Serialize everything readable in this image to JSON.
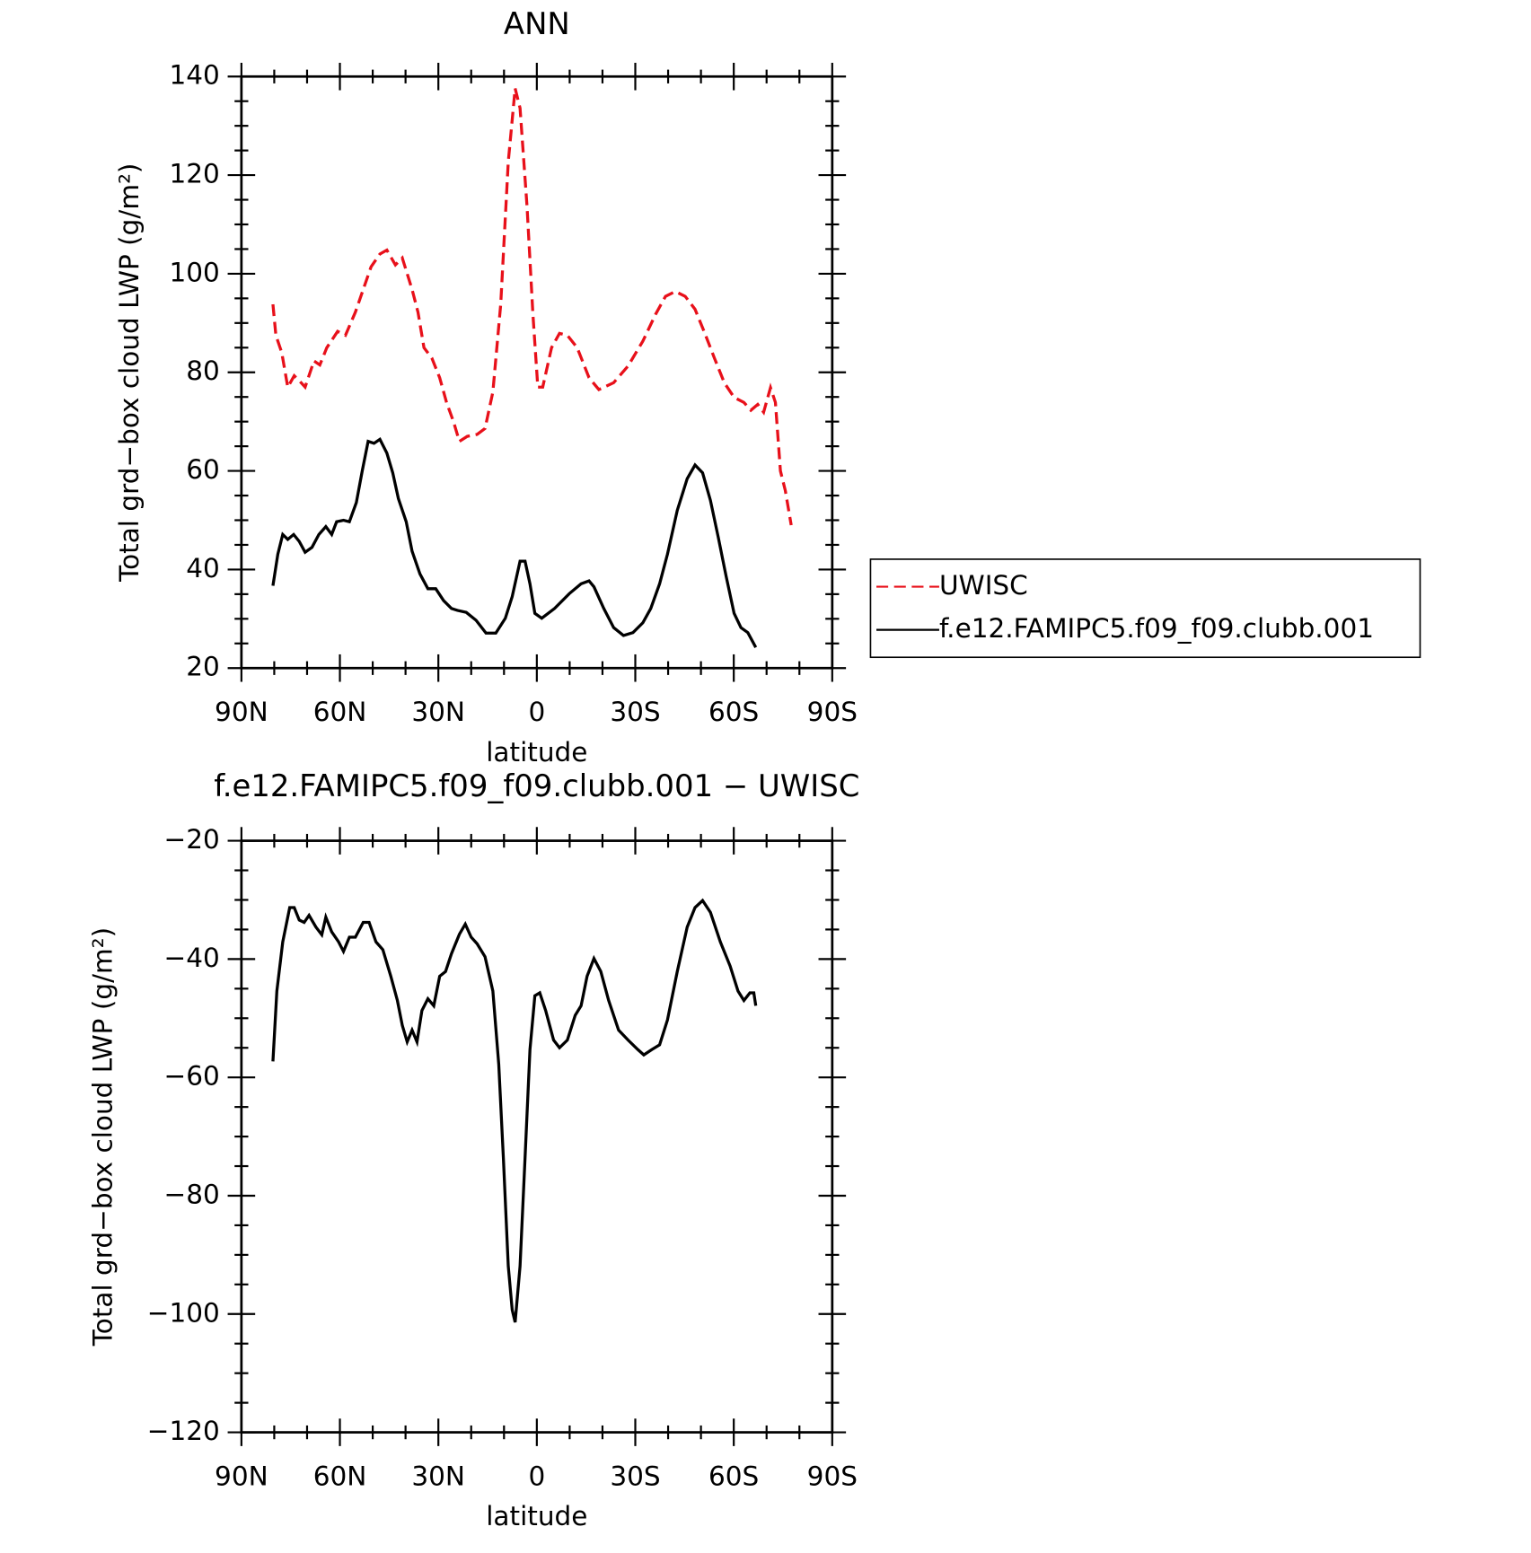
{
  "chart_data": [
    {
      "type": "line",
      "title": "ANN",
      "xlabel": "latitude",
      "ylabel": "Total grd−box cloud LWP (g/m²)",
      "xlim": [
        90,
        -90
      ],
      "xticks": [
        {
          "value": 90,
          "label": "90N"
        },
        {
          "value": 60,
          "label": "60N"
        },
        {
          "value": 30,
          "label": "30N"
        },
        0,
        {
          "value": -30,
          "label": "30S"
        },
        {
          "value": -60,
          "label": "60S"
        },
        {
          "value": -90,
          "label": "90S"
        }
      ],
      "ylim": [
        20,
        140
      ],
      "yticks": [
        20,
        40,
        60,
        80,
        100,
        120,
        140
      ],
      "legend": "outside right",
      "series": [
        {
          "name": "UWISC",
          "color": "#e8101a",
          "linestyle": "dashed",
          "x": [
            80.4,
            79.5,
            77.7,
            75.9,
            73.9,
            72.4,
            70.6,
            67.9,
            66.1,
            64.0,
            60.7,
            58.3,
            55.3,
            52.9,
            50.5,
            47.8,
            45.7,
            43.1,
            41.0,
            38.0,
            36.2,
            34.4,
            32.0,
            29.6,
            27.5,
            25.4,
            23.6,
            21.2,
            18.2,
            15.8,
            13.4,
            11.0,
            8.7,
            6.6,
            5.1,
            3.0,
            1.2,
            -0.3,
            -1.8,
            -4.5,
            -6.9,
            -9.3,
            -12.3,
            -15.9,
            -18.9,
            -23.4,
            -27.8,
            -32.3,
            -36.2,
            -39.2,
            -42.2,
            -45.2,
            -48.2,
            -51.2,
            -54.1,
            -57.1,
            -60.1,
            -63.1,
            -65.2,
            -67.3,
            -69.1,
            -71.2,
            -72.7,
            -74.2,
            -75.7,
            -77.5
          ],
          "values": [
            93.8,
            87.5,
            84,
            77,
            79.3,
            78.3,
            77,
            82.3,
            81.5,
            85,
            88.3,
            87.5,
            92.2,
            96.8,
            101.4,
            104,
            104.8,
            101.8,
            103.2,
            96.8,
            92.2,
            85,
            82.9,
            78.9,
            73.9,
            70,
            66,
            67,
            67.4,
            68.6,
            76,
            93.8,
            122.7,
            137.6,
            133.6,
            113.7,
            91.8,
            77,
            77,
            85,
            87.9,
            87.5,
            85,
            78.9,
            76.5,
            77.9,
            81.3,
            86.3,
            91.8,
            95.4,
            96.4,
            95.4,
            92.8,
            87.9,
            82.9,
            77.9,
            74.9,
            73.9,
            72.3,
            73.5,
            71.9,
            76.9,
            73.9,
            60,
            56,
            49
          ]
        },
        {
          "name": "f.e12.FAMIPC5.f09_f09.clubb.001",
          "color": "#000000",
          "linestyle": "solid",
          "x": [
            80.4,
            78.9,
            77.4,
            75.9,
            74.1,
            72.4,
            70.6,
            68.5,
            66.4,
            64.3,
            62.5,
            61.0,
            58.9,
            57.1,
            55.0,
            53.2,
            51.4,
            49.6,
            47.8,
            45.7,
            43.9,
            42.2,
            39.8,
            38.0,
            35.6,
            33.2,
            30.8,
            28.4,
            26.0,
            24.2,
            21.5,
            18.5,
            15.5,
            12.5,
            9.6,
            7.5,
            5.1,
            3.6,
            2.1,
            0.6,
            -1.5,
            -5.4,
            -9.9,
            -13.5,
            -15.9,
            -17.4,
            -20.4,
            -23.4,
            -26.4,
            -29.3,
            -32.3,
            -34.7,
            -37.4,
            -39.8,
            -42.8,
            -45.8,
            -48.2,
            -50.5,
            -52.9,
            -55.3,
            -57.7,
            -60.1,
            -62.2,
            -64.3,
            -66.7
          ],
          "values": [
            36.7,
            43.1,
            47.1,
            46.1,
            47.1,
            45.7,
            43.5,
            44.5,
            47.1,
            48.7,
            47.1,
            49.7,
            50.0,
            49.7,
            53.6,
            60,
            66,
            65.6,
            66.4,
            63.6,
            59.6,
            54.4,
            49.7,
            43.7,
            39.1,
            36.1,
            36.1,
            33.7,
            32.1,
            31.7,
            31.3,
            29.7,
            27.1,
            27.1,
            30.1,
            34.5,
            41.7,
            41.7,
            37.1,
            31.1,
            30.1,
            32.1,
            35.1,
            37.1,
            37.7,
            36.5,
            32.1,
            28.2,
            26.6,
            27.2,
            29.2,
            32.1,
            37.1,
            43.1,
            52.0,
            58.4,
            61.2,
            59.6,
            54.0,
            46.5,
            38.5,
            31.1,
            28.2,
            27.2,
            24.2
          ]
        }
      ]
    },
    {
      "type": "line",
      "title": "f.e12.FAMIPC5.f09_f09.clubb.001 − UWISC",
      "xlabel": "latitude",
      "ylabel": "Total grd−box cloud LWP (g/m²)",
      "xlim": [
        90,
        -90
      ],
      "xticks": [
        {
          "value": 90,
          "label": "90N"
        },
        {
          "value": 60,
          "label": "60N"
        },
        {
          "value": 30,
          "label": "30N"
        },
        0,
        {
          "value": -30,
          "label": "30S"
        },
        {
          "value": -60,
          "label": "60S"
        },
        {
          "value": -90,
          "label": "90S"
        }
      ],
      "ylim": [
        -120,
        -20
      ],
      "yticks": [
        {
          "value": -120,
          "label": "−120"
        },
        {
          "value": -100,
          "label": "−100"
        },
        {
          "value": -80,
          "label": "−80"
        },
        {
          "value": -60,
          "label": "−60"
        },
        {
          "value": -40,
          "label": "−40"
        },
        {
          "value": -20,
          "label": "−20"
        }
      ],
      "color": "#000000",
      "x": [
        80.4,
        79.2,
        77.4,
        75.3,
        73.9,
        72.4,
        70.9,
        69.4,
        67.3,
        65.5,
        64.3,
        62.5,
        60.4,
        58.9,
        57.1,
        55.3,
        52.9,
        51.1,
        49.0,
        46.9,
        44.5,
        42.5,
        41.0,
        39.5,
        38.0,
        36.5,
        35.0,
        33.2,
        31.4,
        29.6,
        27.8,
        26.0,
        23.6,
        21.8,
        20.0,
        18.2,
        15.8,
        13.4,
        11.6,
        10.2,
        8.7,
        7.5,
        6.6,
        5.1,
        3.6,
        2.1,
        0.6,
        -0.9,
        -2.7,
        -5.1,
        -6.9,
        -9.3,
        -11.7,
        -13.5,
        -15.3,
        -17.4,
        -19.5,
        -21.9,
        -24.9,
        -27.8,
        -30.8,
        -32.6,
        -35.0,
        -37.4,
        -39.8,
        -42.8,
        -45.8,
        -48.2,
        -50.5,
        -52.9,
        -55.9,
        -58.9,
        -61.3,
        -63.1,
        -64.9,
        -66.1,
        -66.7
      ],
      "values": [
        -57.3,
        -45.4,
        -37.1,
        -31.3,
        -31.3,
        -33.4,
        -33.8,
        -32.6,
        -34.6,
        -35.9,
        -32.9,
        -35.4,
        -37.1,
        -38.7,
        -36.3,
        -36.3,
        -33.8,
        -33.8,
        -37.1,
        -38.4,
        -42.9,
        -47.0,
        -51.2,
        -54.0,
        -52.0,
        -54.0,
        -48.7,
        -46.7,
        -47.9,
        -42.9,
        -42.1,
        -39.1,
        -35.8,
        -34.1,
        -36.3,
        -37.4,
        -39.6,
        -45.4,
        -57.8,
        -73.6,
        -91.9,
        -99.3,
        -101.4,
        -91.9,
        -73.6,
        -55.3,
        -46.2,
        -45.7,
        -48.7,
        -53.7,
        -55.0,
        -53.7,
        -49.5,
        -47.9,
        -42.9,
        -39.9,
        -42.1,
        -47.0,
        -52.0,
        -53.7,
        -55.3,
        -56.2,
        -55.3,
        -54.5,
        -50.3,
        -42.1,
        -34.6,
        -31.3,
        -30.1,
        -32.1,
        -37.1,
        -41.2,
        -45.4,
        -47.0,
        -45.7,
        -45.7,
        -47.9
      ]
    }
  ]
}
